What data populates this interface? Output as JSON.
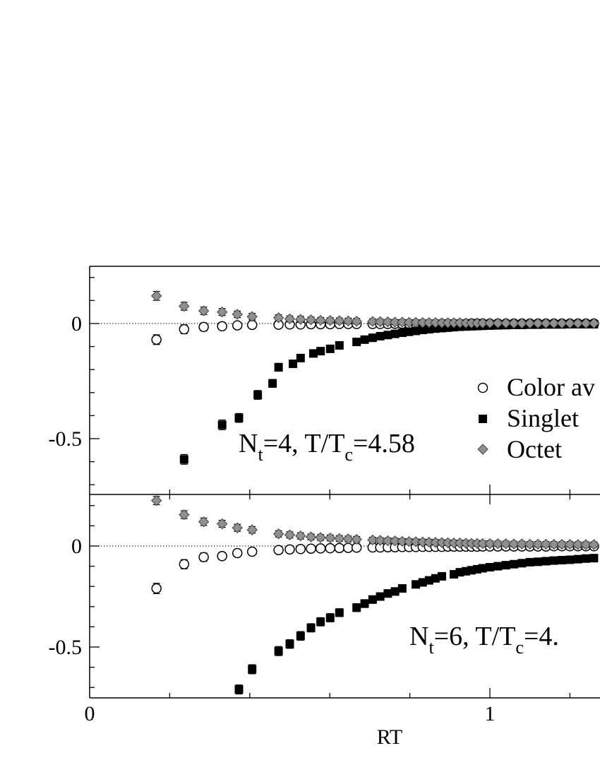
{
  "chart_data": [
    {
      "type": "scatter",
      "title": "N_t=4, T/T_c=4.58",
      "annotation": {
        "base1": "N",
        "sub1": "t",
        "mid": "=4, T/T",
        "sub2": "c",
        "end": "=4.58"
      },
      "xlabel": "",
      "ylabel": "",
      "xlim": [
        0,
        1.3
      ],
      "ylim": [
        -0.75,
        0.25
      ],
      "yticks": [
        0,
        -0.5
      ],
      "ytick_labels": [
        "0",
        "-0.5"
      ],
      "grid": false,
      "legend_position": "right",
      "series": [
        {
          "name": "Color averaged",
          "visible_name": "Color av",
          "marker": "open-circle",
          "x": [
            0.167,
            0.236,
            0.285,
            0.331,
            0.369,
            0.406,
            0.472,
            0.5,
            0.527,
            0.553,
            0.577,
            0.601,
            0.624,
            0.646,
            0.667,
            0.707,
            0.726,
            0.745,
            0.763,
            0.781,
            0.798,
            0.815,
            0.832,
            0.848,
            0.864,
            0.88,
            0.895,
            0.91,
            0.925,
            0.94,
            0.954,
            0.968,
            0.982,
            1.0,
            1.02,
            1.04,
            1.06,
            1.08,
            1.1,
            1.12,
            1.14,
            1.16,
            1.18,
            1.2,
            1.22,
            1.24,
            1.26,
            1.28,
            1.3
          ],
          "y": [
            -0.07,
            -0.025,
            -0.015,
            -0.012,
            -0.008,
            -0.006,
            -0.005,
            -0.004,
            -0.004,
            -0.003,
            -0.003,
            -0.003,
            -0.002,
            -0.002,
            -0.002,
            -0.002,
            -0.002,
            -0.002,
            -0.001,
            -0.001,
            -0.001,
            -0.001,
            -0.001,
            -0.001,
            -0.001,
            -0.001,
            -0.001,
            -0.001,
            -0.001,
            -0.001,
            0,
            0,
            0,
            0,
            0,
            0,
            0,
            0,
            0,
            0,
            0,
            0,
            0,
            0,
            0,
            0,
            0,
            0,
            0
          ],
          "err": [
            0.012,
            0.01,
            0.008,
            0.006,
            0.005,
            0.004,
            0.004,
            0.003,
            0.003,
            0.003,
            0.003,
            0.003,
            0.003,
            0.002,
            0.002,
            0.002,
            0.002,
            0.002,
            0.002,
            0.002,
            0.002,
            0.002,
            0.002,
            0.002,
            0.002,
            0.002,
            0.002,
            0.002,
            0.002,
            0.002,
            0.002,
            0.002,
            0.002,
            0.002,
            0.002,
            0.002,
            0.002,
            0.002,
            0.002,
            0.002,
            0.002,
            0.002,
            0.002,
            0.002,
            0.002,
            0.002,
            0.002,
            0.002,
            0.002
          ]
        },
        {
          "name": "Singlet",
          "marker": "filled-square",
          "x": [
            0.236,
            0.331,
            0.373,
            0.42,
            0.457,
            0.472,
            0.508,
            0.527,
            0.559,
            0.577,
            0.601,
            0.624,
            0.667,
            0.687,
            0.707,
            0.726,
            0.745,
            0.763,
            0.781,
            0.798,
            0.815,
            0.832,
            0.848,
            0.864,
            0.88,
            0.895,
            0.91,
            0.925,
            0.94,
            0.954,
            0.968,
            0.982,
            1.0,
            1.02,
            1.04,
            1.06,
            1.08,
            1.1,
            1.12,
            1.14,
            1.16,
            1.18,
            1.2,
            1.22,
            1.24,
            1.26,
            1.28,
            1.3
          ],
          "y": [
            -0.59,
            -0.44,
            -0.41,
            -0.31,
            -0.26,
            -0.19,
            -0.175,
            -0.15,
            -0.13,
            -0.12,
            -0.11,
            -0.095,
            -0.08,
            -0.07,
            -0.062,
            -0.055,
            -0.05,
            -0.045,
            -0.04,
            -0.036,
            -0.032,
            -0.028,
            -0.025,
            -0.022,
            -0.02,
            -0.018,
            -0.016,
            -0.014,
            -0.013,
            -0.012,
            -0.011,
            -0.01,
            -0.009,
            -0.008,
            -0.007,
            -0.006,
            -0.006,
            -0.005,
            -0.005,
            -0.004,
            -0.004,
            -0.004,
            -0.003,
            -0.003,
            -0.003,
            -0.003,
            -0.002,
            -0.002
          ],
          "err": [
            0.012,
            0.012,
            0.01,
            0.01,
            0.008,
            0.008,
            0.007,
            0.006,
            0.006,
            0.005,
            0.005,
            0.005,
            0.005,
            0.005,
            0.004,
            0.004,
            0.004,
            0.004,
            0.004,
            0.004,
            0.004,
            0.003,
            0.003,
            0.003,
            0.003,
            0.003,
            0.003,
            0.003,
            0.003,
            0.003,
            0.003,
            0.003,
            0.003,
            0.003,
            0.003,
            0.003,
            0.003,
            0.003,
            0.003,
            0.003,
            0.003,
            0.003,
            0.003,
            0.003,
            0.003,
            0.003,
            0.003,
            0.003
          ]
        },
        {
          "name": "Octet",
          "marker": "filled-diamond",
          "x": [
            0.167,
            0.236,
            0.285,
            0.331,
            0.369,
            0.406,
            0.472,
            0.5,
            0.527,
            0.553,
            0.577,
            0.601,
            0.624,
            0.646,
            0.667,
            0.707,
            0.726,
            0.745,
            0.763,
            0.781,
            0.798,
            0.815,
            0.832,
            0.848,
            0.864,
            0.88,
            0.895,
            0.91,
            0.925,
            0.94,
            0.954,
            0.968,
            0.982,
            1.0,
            1.02,
            1.04,
            1.06,
            1.08,
            1.1,
            1.12,
            1.14,
            1.16,
            1.18,
            1.2,
            1.22,
            1.24,
            1.26,
            1.28,
            1.3
          ],
          "y": [
            0.12,
            0.075,
            0.055,
            0.05,
            0.04,
            0.03,
            0.025,
            0.02,
            0.018,
            0.016,
            0.014,
            0.013,
            0.012,
            0.011,
            0.01,
            0.009,
            0.008,
            0.007,
            0.006,
            0.006,
            0.005,
            0.005,
            0.004,
            0.004,
            0.004,
            0.003,
            0.003,
            0.003,
            0.003,
            0.002,
            0.002,
            0.002,
            0.002,
            0.002,
            0.002,
            0.002,
            0.001,
            0.001,
            0.001,
            0.001,
            0.001,
            0.001,
            0.001,
            0.001,
            0.001,
            0.001,
            0.001,
            0.001,
            0.001
          ],
          "err": [
            0.01,
            0.008,
            0.007,
            0.006,
            0.005,
            0.005,
            0.004,
            0.004,
            0.004,
            0.003,
            0.003,
            0.003,
            0.003,
            0.003,
            0.003,
            0.002,
            0.002,
            0.002,
            0.002,
            0.002,
            0.002,
            0.002,
            0.002,
            0.002,
            0.002,
            0.002,
            0.002,
            0.002,
            0.002,
            0.002,
            0.002,
            0.002,
            0.002,
            0.002,
            0.002,
            0.002,
            0.002,
            0.002,
            0.002,
            0.002,
            0.002,
            0.002,
            0.002,
            0.002,
            0.002,
            0.002,
            0.002,
            0.002,
            0.002
          ]
        }
      ]
    },
    {
      "type": "scatter",
      "title": "N_t=6, T/T_c=4.",
      "annotation": {
        "base1": "N",
        "sub1": "t",
        "mid": "=6, T/T",
        "sub2": "c",
        "end": "=4."
      },
      "xlabel": "RT",
      "ylabel": "",
      "xlim": [
        0,
        1.3
      ],
      "ylim": [
        -0.75,
        0.25
      ],
      "xticks": [
        0,
        1
      ],
      "xtick_labels": [
        "0",
        "1"
      ],
      "yticks": [
        0,
        -0.5
      ],
      "ytick_labels": [
        "0",
        "-0.5"
      ],
      "grid": false,
      "series": [
        {
          "name": "Color averaged",
          "marker": "open-circle",
          "x": [
            0.167,
            0.236,
            0.285,
            0.331,
            0.369,
            0.406,
            0.472,
            0.5,
            0.527,
            0.553,
            0.577,
            0.601,
            0.624,
            0.646,
            0.667,
            0.707,
            0.726,
            0.745,
            0.763,
            0.781,
            0.798,
            0.815,
            0.832,
            0.848,
            0.864,
            0.88,
            0.895,
            0.91,
            0.925,
            0.94,
            0.954,
            0.968,
            0.982,
            1.0,
            1.02,
            1.04,
            1.06,
            1.08,
            1.1,
            1.12,
            1.14,
            1.16,
            1.18,
            1.2,
            1.22,
            1.24,
            1.26,
            1.28,
            1.3
          ],
          "y": [
            -0.21,
            -0.09,
            -0.055,
            -0.05,
            -0.035,
            -0.028,
            -0.02,
            -0.017,
            -0.015,
            -0.013,
            -0.012,
            -0.011,
            -0.01,
            -0.009,
            -0.008,
            -0.007,
            -0.007,
            -0.006,
            -0.006,
            -0.005,
            -0.005,
            -0.005,
            -0.004,
            -0.004,
            -0.004,
            -0.004,
            -0.003,
            -0.003,
            -0.003,
            -0.003,
            -0.003,
            -0.003,
            -0.002,
            -0.002,
            -0.002,
            -0.002,
            -0.002,
            -0.002,
            -0.002,
            -0.002,
            -0.002,
            -0.001,
            -0.001,
            -0.001,
            -0.001,
            -0.001,
            -0.001,
            -0.001,
            -0.001
          ],
          "err": [
            0.015,
            0.012,
            0.01,
            0.008,
            0.007,
            0.006,
            0.005,
            0.005,
            0.004,
            0.004,
            0.004,
            0.004,
            0.003,
            0.003,
            0.003,
            0.003,
            0.003,
            0.003,
            0.003,
            0.003,
            0.003,
            0.003,
            0.003,
            0.003,
            0.003,
            0.003,
            0.003,
            0.003,
            0.003,
            0.003,
            0.003,
            0.003,
            0.003,
            0.003,
            0.003,
            0.003,
            0.003,
            0.003,
            0.003,
            0.003,
            0.003,
            0.003,
            0.003,
            0.003,
            0.003,
            0.003,
            0.003,
            0.003,
            0.003
          ]
        },
        {
          "name": "Singlet",
          "marker": "filled-square",
          "x": [
            0.373,
            0.406,
            0.472,
            0.5,
            0.527,
            0.553,
            0.577,
            0.601,
            0.624,
            0.667,
            0.687,
            0.707,
            0.726,
            0.745,
            0.763,
            0.781,
            0.815,
            0.832,
            0.848,
            0.864,
            0.88,
            0.91,
            0.925,
            0.94,
            0.954,
            0.968,
            0.982,
            1.0,
            1.02,
            1.04,
            1.06,
            1.08,
            1.1,
            1.12,
            1.14,
            1.16,
            1.18,
            1.2,
            1.22,
            1.24,
            1.26,
            1.28,
            1.3
          ],
          "y": [
            -0.71,
            -0.61,
            -0.52,
            -0.485,
            -0.445,
            -0.405,
            -0.375,
            -0.355,
            -0.33,
            -0.305,
            -0.285,
            -0.265,
            -0.25,
            -0.235,
            -0.225,
            -0.21,
            -0.19,
            -0.18,
            -0.17,
            -0.16,
            -0.15,
            -0.14,
            -0.13,
            -0.125,
            -0.12,
            -0.115,
            -0.11,
            -0.105,
            -0.1,
            -0.095,
            -0.09,
            -0.085,
            -0.08,
            -0.078,
            -0.075,
            -0.072,
            -0.07,
            -0.068,
            -0.065,
            -0.062,
            -0.06,
            -0.058,
            -0.055
          ],
          "err": [
            0.012,
            0.012,
            0.012,
            0.011,
            0.011,
            0.01,
            0.01,
            0.01,
            0.009,
            0.009,
            0.009,
            0.008,
            0.008,
            0.008,
            0.008,
            0.007,
            0.007,
            0.007,
            0.007,
            0.007,
            0.006,
            0.006,
            0.006,
            0.006,
            0.006,
            0.006,
            0.006,
            0.005,
            0.005,
            0.005,
            0.005,
            0.005,
            0.005,
            0.005,
            0.005,
            0.005,
            0.005,
            0.005,
            0.005,
            0.005,
            0.005,
            0.005,
            0.005
          ]
        },
        {
          "name": "Octet",
          "marker": "filled-diamond",
          "x": [
            0.167,
            0.236,
            0.285,
            0.331,
            0.369,
            0.406,
            0.472,
            0.5,
            0.527,
            0.553,
            0.577,
            0.601,
            0.624,
            0.646,
            0.667,
            0.707,
            0.726,
            0.745,
            0.763,
            0.781,
            0.798,
            0.815,
            0.832,
            0.848,
            0.864,
            0.88,
            0.895,
            0.91,
            0.925,
            0.94,
            0.954,
            0.968,
            0.982,
            1.0,
            1.02,
            1.04,
            1.06,
            1.08,
            1.1,
            1.12,
            1.14,
            1.16,
            1.18,
            1.2,
            1.22,
            1.24,
            1.26,
            1.28,
            1.3
          ],
          "y": [
            0.225,
            0.155,
            0.12,
            0.11,
            0.09,
            0.08,
            0.06,
            0.055,
            0.05,
            0.045,
            0.042,
            0.04,
            0.037,
            0.035,
            0.033,
            0.03,
            0.028,
            0.026,
            0.025,
            0.023,
            0.022,
            0.021,
            0.02,
            0.019,
            0.018,
            0.017,
            0.016,
            0.015,
            0.015,
            0.014,
            0.013,
            0.013,
            0.012,
            0.012,
            0.011,
            0.011,
            0.01,
            0.01,
            0.009,
            0.009,
            0.009,
            0.008,
            0.008,
            0.008,
            0.007,
            0.007,
            0.007,
            0.006,
            0.006
          ],
          "err": [
            0.01,
            0.009,
            0.008,
            0.007,
            0.007,
            0.006,
            0.005,
            0.005,
            0.005,
            0.004,
            0.004,
            0.004,
            0.004,
            0.004,
            0.004,
            0.003,
            0.003,
            0.003,
            0.003,
            0.003,
            0.003,
            0.003,
            0.003,
            0.003,
            0.003,
            0.003,
            0.003,
            0.003,
            0.003,
            0.003,
            0.003,
            0.003,
            0.003,
            0.003,
            0.003,
            0.003,
            0.003,
            0.003,
            0.003,
            0.003,
            0.003,
            0.003,
            0.003,
            0.003,
            0.003,
            0.003,
            0.003,
            0.003,
            0.003
          ]
        }
      ]
    }
  ]
}
